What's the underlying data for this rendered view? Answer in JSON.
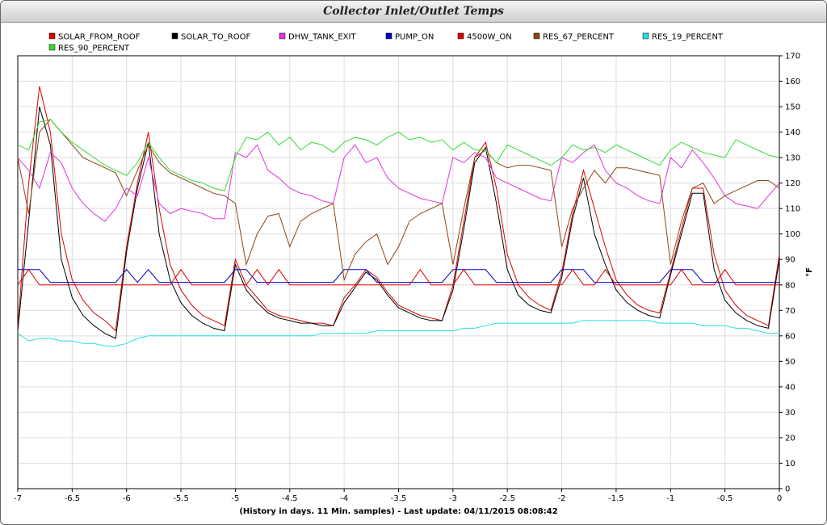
{
  "chart_data": {
    "type": "line",
    "title": "Collector Inlet/Outlet Temps",
    "x_label": "(History in days. 11 Min. samples) - Last update: 04/11/2015 08:08:42",
    "y_label": "°F",
    "x": [
      -7,
      -6.9,
      -6.8,
      -6.7,
      -6.6,
      -6.5,
      -6.4,
      -6.3,
      -6.2,
      -6.1,
      -6,
      -5.9,
      -5.8,
      -5.7,
      -5.6,
      -5.5,
      -5.4,
      -5.3,
      -5.2,
      -5.1,
      -5,
      -4.9,
      -4.8,
      -4.7,
      -4.6,
      -4.5,
      -4.4,
      -4.3,
      -4.2,
      -4.1,
      -4,
      -3.9,
      -3.8,
      -3.7,
      -3.6,
      -3.5,
      -3.4,
      -3.3,
      -3.2,
      -3.1,
      -3,
      -2.9,
      -2.8,
      -2.7,
      -2.6,
      -2.5,
      -2.4,
      -2.3,
      -2.2,
      -2.1,
      -2,
      -1.9,
      -1.8,
      -1.7,
      -1.6,
      -1.5,
      -1.4,
      -1.3,
      -1.2,
      -1.1,
      -1,
      -0.9,
      -0.8,
      -0.7,
      -0.6,
      -0.5,
      -0.4,
      -0.3,
      -0.2,
      -0.1,
      0
    ],
    "xlim": [
      -7,
      0
    ],
    "xticks": [
      -7,
      -6.5,
      -6,
      -5.5,
      -5,
      -4.5,
      -4,
      -3.5,
      -3,
      -2.5,
      -2,
      -1.5,
      -1,
      -0.5,
      0
    ],
    "ylim": [
      0,
      170
    ],
    "yticks": [
      0,
      10,
      20,
      30,
      40,
      50,
      60,
      70,
      80,
      90,
      100,
      110,
      120,
      130,
      140,
      150,
      160,
      170
    ],
    "grid": true,
    "series": [
      {
        "name": "SOLAR_FROM_ROOF",
        "color": "#dd0000",
        "values": [
          63,
          120,
          158,
          140,
          100,
          82,
          74,
          69,
          66,
          62,
          95,
          120,
          140,
          110,
          88,
          78,
          72,
          68,
          66,
          64,
          90,
          80,
          75,
          70,
          68,
          67,
          66,
          65,
          65,
          64,
          75,
          80,
          86,
          83,
          77,
          72,
          70,
          68,
          67,
          66,
          80,
          105,
          130,
          136,
          118,
          92,
          80,
          75,
          72,
          70,
          85,
          108,
          125,
          110,
          95,
          82,
          76,
          72,
          70,
          69,
          85,
          102,
          118,
          118,
          92,
          78,
          72,
          68,
          66,
          64,
          92
        ]
      },
      {
        "name": "SOLAR_TO_ROOF",
        "color": "#000000",
        "values": [
          62,
          105,
          150,
          135,
          90,
          75,
          68,
          64,
          61,
          59,
          93,
          118,
          136,
          100,
          82,
          73,
          68,
          65,
          63,
          62,
          88,
          78,
          73,
          69,
          67,
          66,
          65,
          65,
          64,
          64,
          73,
          79,
          85,
          82,
          76,
          71,
          69,
          67,
          66,
          66,
          78,
          102,
          128,
          134,
          112,
          86,
          76,
          72,
          70,
          69,
          83,
          106,
          122,
          100,
          88,
          78,
          73,
          70,
          68,
          67,
          84,
          100,
          116,
          116,
          86,
          74,
          69,
          66,
          64,
          63,
          90
        ]
      },
      {
        "name": "DHW_TANK_EXIT",
        "color": "#e033e0",
        "values": [
          130,
          125,
          118,
          132,
          128,
          118,
          112,
          108,
          105,
          110,
          118,
          115,
          130,
          112,
          108,
          110,
          109,
          108,
          106,
          106,
          132,
          130,
          135,
          125,
          122,
          118,
          116,
          115,
          113,
          112,
          130,
          135,
          128,
          130,
          122,
          118,
          116,
          114,
          113,
          112,
          130,
          128,
          132,
          130,
          122,
          120,
          118,
          116,
          114,
          113,
          130,
          128,
          132,
          135,
          125,
          120,
          118,
          115,
          113,
          112,
          130,
          126,
          133,
          128,
          122,
          115,
          112,
          111,
          110,
          115,
          120
        ]
      },
      {
        "name": "PUMP_ON",
        "color": "#0000cc",
        "values": [
          86,
          86,
          86,
          81,
          81,
          81,
          81,
          81,
          81,
          81,
          86,
          81,
          86,
          81,
          81,
          81,
          81,
          81,
          81,
          81,
          86,
          86,
          81,
          81,
          81,
          81,
          81,
          81,
          81,
          81,
          86,
          86,
          86,
          81,
          81,
          81,
          81,
          81,
          81,
          81,
          86,
          86,
          86,
          86,
          81,
          81,
          81,
          81,
          81,
          81,
          86,
          86,
          86,
          81,
          81,
          81,
          81,
          81,
          81,
          81,
          86,
          86,
          86,
          81,
          81,
          81,
          81,
          81,
          81,
          81,
          81
        ]
      },
      {
        "name": "4500W_ON",
        "color": "#dd0000",
        "values": [
          80,
          86,
          80,
          80,
          80,
          80,
          80,
          80,
          80,
          80,
          80,
          80,
          80,
          80,
          80,
          86,
          80,
          80,
          80,
          80,
          80,
          80,
          86,
          80,
          86,
          80,
          80,
          80,
          80,
          80,
          80,
          80,
          80,
          80,
          80,
          80,
          80,
          86,
          80,
          80,
          80,
          86,
          80,
          80,
          80,
          80,
          80,
          80,
          80,
          80,
          80,
          86,
          80,
          80,
          86,
          80,
          80,
          80,
          80,
          80,
          80,
          86,
          80,
          80,
          80,
          86,
          80,
          80,
          80,
          80,
          80
        ]
      },
      {
        "name": "RES_67_PERCENT",
        "color": "#8b4513",
        "values": [
          130,
          108,
          140,
          145,
          140,
          135,
          130,
          128,
          126,
          124,
          115,
          125,
          135,
          128,
          124,
          122,
          120,
          118,
          116,
          115,
          112,
          88,
          100,
          107,
          108,
          95,
          105,
          108,
          110,
          112,
          82,
          92,
          97,
          100,
          88,
          95,
          105,
          108,
          110,
          112,
          88,
          110,
          130,
          133,
          128,
          126,
          127,
          127,
          126,
          125,
          95,
          110,
          118,
          125,
          120,
          126,
          126,
          125,
          124,
          123,
          88,
          105,
          118,
          120,
          112,
          115,
          117,
          119,
          121,
          121,
          118
        ]
      },
      {
        "name": "RES_19_PERCENT",
        "color": "#22e0e0",
        "values": [
          61,
          58,
          59,
          59,
          58,
          58,
          57,
          57,
          56,
          56,
          57,
          59,
          60,
          60,
          60,
          60,
          60,
          60,
          60,
          60,
          60,
          60,
          60,
          60,
          60,
          60,
          60,
          60,
          61,
          61,
          61,
          61,
          61,
          62,
          62,
          62,
          62,
          62,
          62,
          62,
          62,
          63,
          63,
          64,
          65,
          65,
          65,
          65,
          65,
          65,
          65,
          65,
          66,
          66,
          66,
          66,
          66,
          66,
          66,
          65,
          65,
          65,
          65,
          64,
          64,
          64,
          63,
          63,
          62,
          61,
          61
        ]
      },
      {
        "name": "RES_90_PERCENT",
        "color": "#33dd33",
        "values": [
          135,
          133,
          144,
          145,
          140,
          136,
          133,
          130,
          127,
          125,
          123,
          128,
          136,
          130,
          125,
          123,
          121,
          120,
          118,
          117,
          130,
          138,
          137,
          140,
          135,
          138,
          133,
          136,
          135,
          132,
          136,
          138,
          137,
          135,
          138,
          140,
          137,
          138,
          136,
          137,
          133,
          136,
          133,
          133,
          128,
          135,
          133,
          131,
          129,
          127,
          130,
          135,
          133,
          134,
          132,
          135,
          133,
          131,
          129,
          127,
          133,
          136,
          134,
          132,
          131,
          130,
          137,
          135,
          133,
          131,
          130
        ]
      }
    ]
  }
}
